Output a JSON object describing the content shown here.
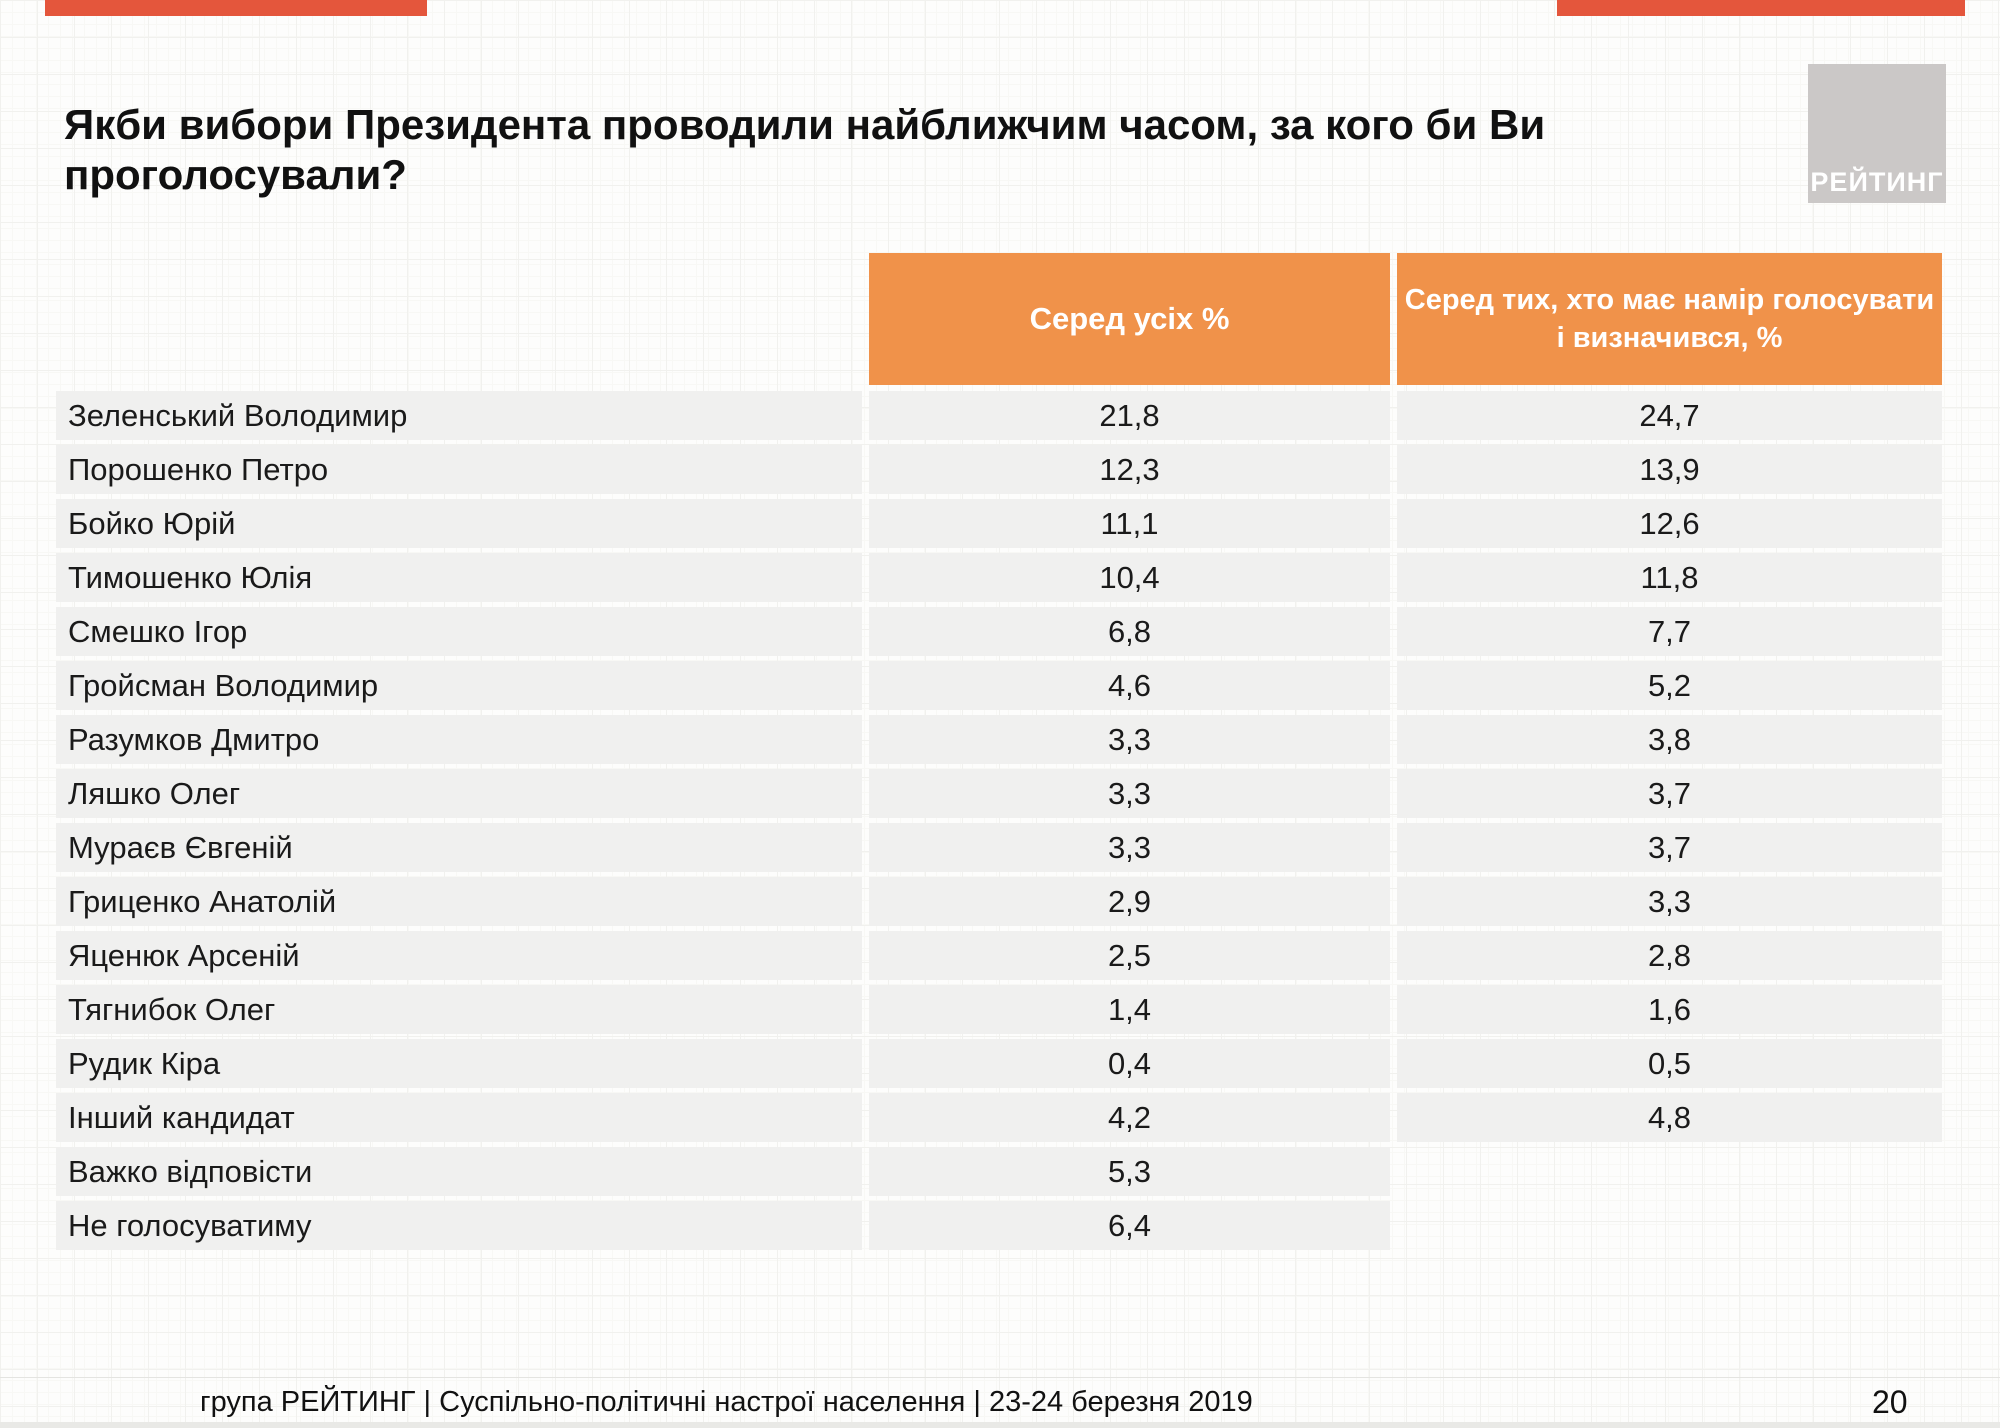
{
  "slide": {
    "title": "Якби вибори Президента проводили найближчим часом, за кого би Ви проголосували?",
    "logo": "РЕЙТИНГ",
    "footer": "група РЕЙТИНГ | Суспільно-політичні настрої населення  | 23-24 березня 2019",
    "page_number": "20"
  },
  "table": {
    "col_all": "Серед усіх %",
    "col_decided": "Серед тих, хто має намір голосувати і визначився, %"
  },
  "chart_data": {
    "type": "table",
    "title": "Якби вибори Президента проводили найближчим часом, за кого би Ви проголосували?",
    "columns": [
      "",
      "Серед усіх %",
      "Серед тих, хто має намір голосувати і визначився, %"
    ],
    "rows": [
      [
        "Зеленський Володимир",
        "21,8",
        "24,7"
      ],
      [
        "Порошенко Петро",
        "12,3",
        "13,9"
      ],
      [
        "Бойко Юрій",
        "11,1",
        "12,6"
      ],
      [
        "Тимошенко Юлія",
        "10,4",
        "11,8"
      ],
      [
        "Смешко Ігор",
        "6,8",
        "7,7"
      ],
      [
        "Гройсман Володимир",
        "4,6",
        "5,2"
      ],
      [
        "Разумков Дмитро",
        "3,3",
        "3,8"
      ],
      [
        "Ляшко Олег",
        "3,3",
        "3,7"
      ],
      [
        "Мураєв Євгеній",
        "3,3",
        "3,7"
      ],
      [
        "Гриценко Анатолій",
        "2,9",
        "3,3"
      ],
      [
        "Яценюк  Арсеній",
        "2,5",
        "2,8"
      ],
      [
        "Тягнибок Олег",
        "1,4",
        "1,6"
      ],
      [
        "Рудик Кіра",
        "0,4",
        "0,5"
      ],
      [
        "Інший кандидат",
        "4,2",
        "4,8"
      ],
      [
        "Важко відповісти",
        "5,3",
        null
      ],
      [
        "Не голосуватиму",
        "6,4",
        null
      ]
    ]
  },
  "colors": {
    "header_bg": "#F0924A",
    "row_bg": "#F0F0EF",
    "top_bar": "#E4563C",
    "logo_bg": "#CBC8C7"
  }
}
